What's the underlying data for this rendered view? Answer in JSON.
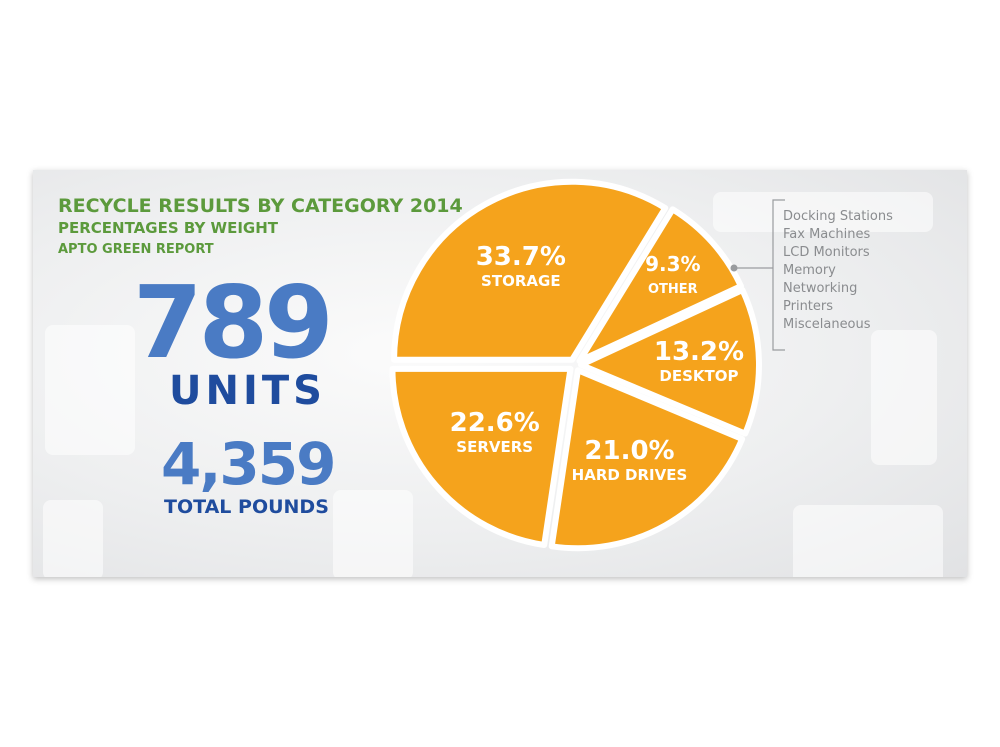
{
  "header": {
    "title": "RECYCLE RESULTS BY CATEGORY 2014",
    "subtitle": "PERCENTAGES BY WEIGHT",
    "source": "APTO GREEN REPORT"
  },
  "stats": {
    "units_value": "789",
    "units_label": "UNITS",
    "pounds_value": "4,359",
    "pounds_label": "TOTAL POUNDS"
  },
  "colors": {
    "title_green": "#5c9a3c",
    "stat_blue": "#4a7bc4",
    "stat_dark_blue": "#1f4c9e",
    "slice": "#f5a31c"
  },
  "chart_data": {
    "type": "pie",
    "title": "RECYCLE RESULTS BY CATEGORY 2014",
    "subtitle": "PERCENTAGES BY WEIGHT",
    "slices": [
      {
        "label": "STORAGE",
        "value": 33.7,
        "text": "33.7%"
      },
      {
        "label": "OTHER",
        "value": 9.3,
        "text": "9.3%"
      },
      {
        "label": "DESKTOP",
        "value": 13.2,
        "text": "13.2%"
      },
      {
        "label": "HARD DRIVES",
        "value": 21.0,
        "text": "21.0%"
      },
      {
        "label": "SERVERS",
        "value": 22.6,
        "text": "22.6%"
      }
    ],
    "other_breakdown": [
      "Docking Stations",
      "Fax Machines",
      "LCD Monitors",
      "Memory",
      "Networking",
      "Printers",
      "Miscelaneous"
    ]
  }
}
